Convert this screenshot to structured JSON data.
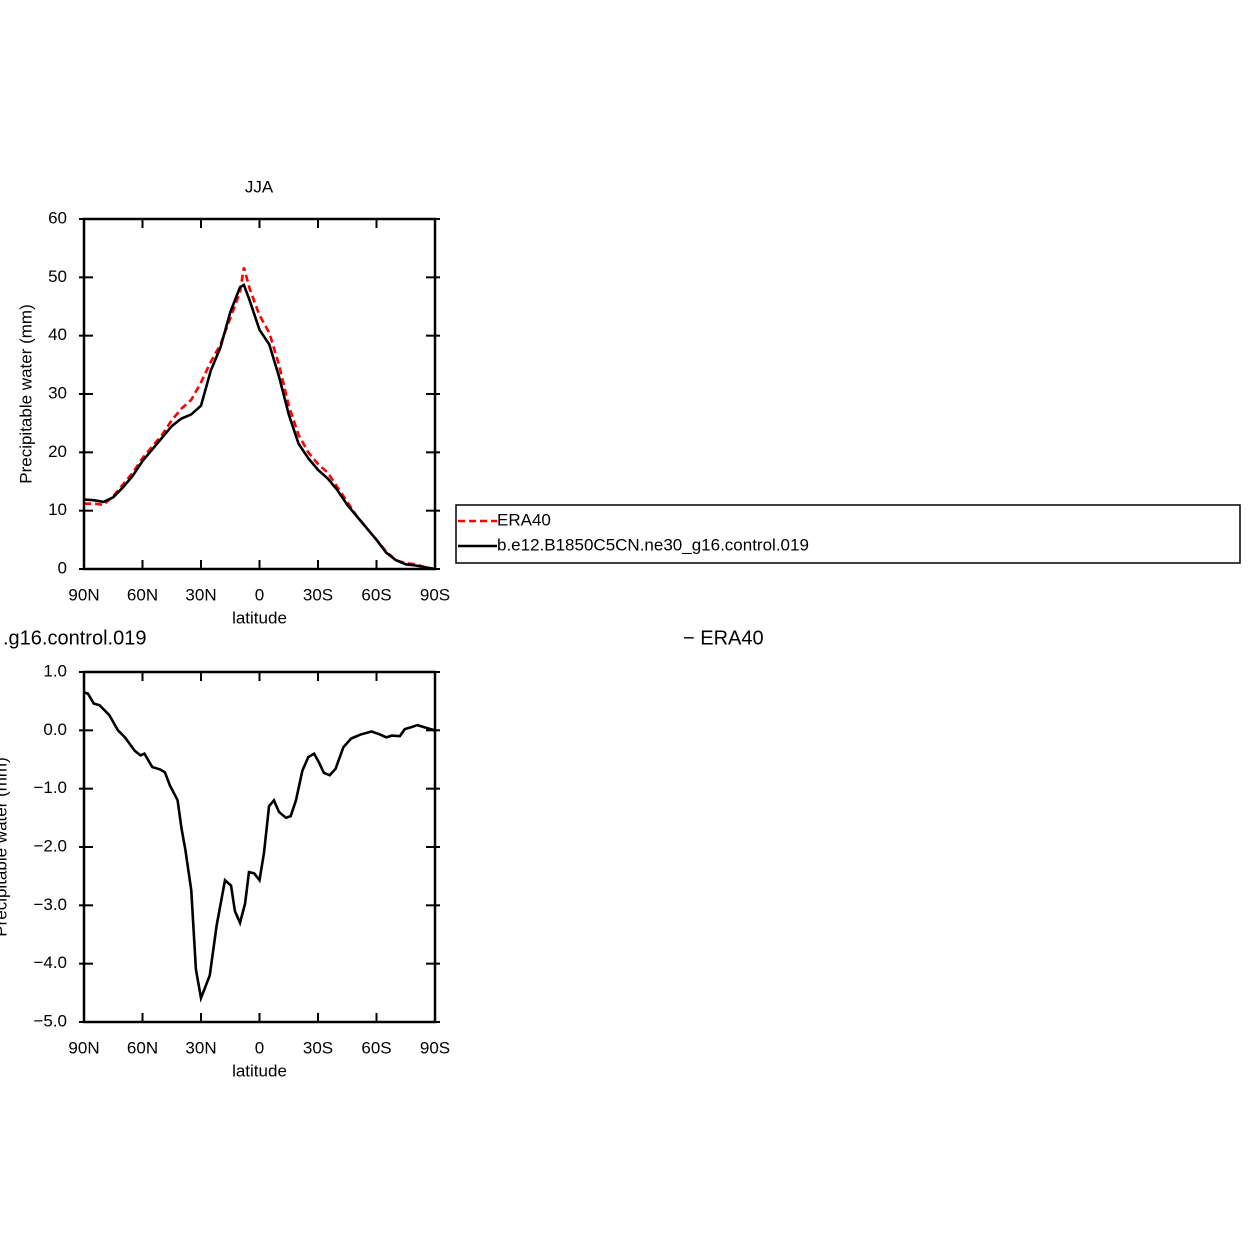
{
  "chart_data": [
    {
      "type": "line",
      "title": "JJA",
      "ylabel": "Precipitable water (mm)",
      "xlabel": "latitude",
      "x": [
        90,
        85,
        80,
        75,
        70,
        65,
        60,
        55,
        50,
        45,
        40,
        35,
        30,
        25,
        20,
        15,
        10,
        8,
        5,
        0,
        -5,
        -10,
        -15,
        -20,
        -25,
        -30,
        -35,
        -40,
        -45,
        -50,
        -55,
        -60,
        -65,
        -70,
        -75,
        -80,
        -85,
        -90
      ],
      "series": [
        {
          "name": "ERA40",
          "color": "#ff0000",
          "line_style": "dashed",
          "values": [
            11.2,
            11.2,
            11,
            12.5,
            14.5,
            16.5,
            19,
            21,
            23,
            25.5,
            27.5,
            29,
            32,
            35.5,
            38.5,
            43,
            47.5,
            51.7,
            48,
            43.5,
            40.5,
            35,
            28,
            23,
            20,
            18,
            16.5,
            14,
            11.5,
            9,
            7,
            5,
            3,
            1.5,
            1,
            0.8,
            0.3,
            0
          ]
        },
        {
          "name": "b.e12.B1850C5CN.ne30_g16.control.019",
          "color": "#000000",
          "line_style": "solid",
          "values": [
            11.9,
            11.8,
            11.5,
            12.3,
            14,
            16,
            18.5,
            20.5,
            22.5,
            24.5,
            25.8,
            26.5,
            28,
            34,
            38,
            44,
            48.3,
            48.7,
            46,
            41,
            38.5,
            33,
            26.5,
            21.5,
            19,
            17,
            15.5,
            13.5,
            11,
            9,
            7,
            5,
            2.8,
            1.5,
            0.8,
            0.6,
            0.3,
            0
          ]
        }
      ],
      "xlim": [
        90,
        -90
      ],
      "xticks": [
        {
          "value": 90,
          "label": "90N"
        },
        {
          "value": 60,
          "label": "60N"
        },
        {
          "value": 30,
          "label": "30N"
        },
        0,
        {
          "value": -30,
          "label": "30S"
        },
        {
          "value": -60,
          "label": "60S"
        },
        {
          "value": -90,
          "label": "90S"
        }
      ],
      "ylim": [
        0,
        60
      ],
      "yticks": [
        0,
        10,
        20,
        30,
        40,
        50,
        60
      ],
      "legend": "right"
    },
    {
      "type": "line",
      "title_left": ".g16.control.019",
      "title_right": "− ERA40",
      "ylabel": "Precipitable water (mm)",
      "xlabel": "latitude",
      "x": [
        90,
        88,
        85,
        82,
        77,
        72.6,
        69,
        64,
        61,
        59,
        55,
        51,
        48.5,
        46,
        42,
        40,
        38,
        35,
        32.6,
        30,
        25.5,
        22,
        17.7,
        14.6,
        12.6,
        10,
        7.4,
        5.4,
        2.8,
        0,
        -2.3,
        -4.9,
        -7.4,
        -10,
        -13.6,
        -16,
        -18.7,
        -22,
        -25,
        -28,
        -30.5,
        -33,
        -36,
        -39,
        -43,
        -47,
        -52,
        -57.5,
        -61.7,
        -65,
        -67.9,
        -72,
        -74.5,
        -77.5,
        -81,
        -84.7,
        -90
      ],
      "series": [
        {
          "color": "#000000",
          "values": [
            0.65,
            0.63,
            0.46,
            0.43,
            0.26,
            0,
            -0.12,
            -0.35,
            -0.43,
            -0.4,
            -0.63,
            -0.67,
            -0.72,
            -0.94,
            -1.2,
            -1.68,
            -2.05,
            -2.74,
            -4.1,
            -4.59,
            -4.2,
            -3.35,
            -2.57,
            -2.66,
            -3.1,
            -3.3,
            -2.97,
            -2.43,
            -2.45,
            -2.57,
            -2.1,
            -1.3,
            -1.2,
            -1.4,
            -1.5,
            -1.47,
            -1.2,
            -0.69,
            -0.46,
            -0.4,
            -0.55,
            -0.73,
            -0.77,
            -0.66,
            -0.29,
            -0.14,
            -0.07,
            -0.02,
            -0.07,
            -0.12,
            -0.09,
            -0.1,
            0.02,
            0.05,
            0.09,
            0.05,
            0
          ]
        }
      ],
      "xlim": [
        90,
        -90
      ],
      "xticks": [
        {
          "value": 90,
          "label": "90N"
        },
        {
          "value": 60,
          "label": "60N"
        },
        {
          "value": 30,
          "label": "30N"
        },
        0,
        {
          "value": -30,
          "label": "30S"
        },
        {
          "value": -60,
          "label": "60S"
        },
        {
          "value": -90,
          "label": "90S"
        }
      ],
      "ylim": [
        -5,
        1
      ],
      "yticks": [
        {
          "value": -5,
          "label": "−5.0"
        },
        {
          "value": -4,
          "label": "−4.0"
        },
        {
          "value": -3,
          "label": "−3.0"
        },
        {
          "value": -2,
          "label": "−2.0"
        },
        {
          "value": -1,
          "label": "−1.0"
        },
        {
          "value": 0,
          "label": "0.0"
        },
        {
          "value": 1,
          "label": "1.0"
        }
      ]
    }
  ]
}
